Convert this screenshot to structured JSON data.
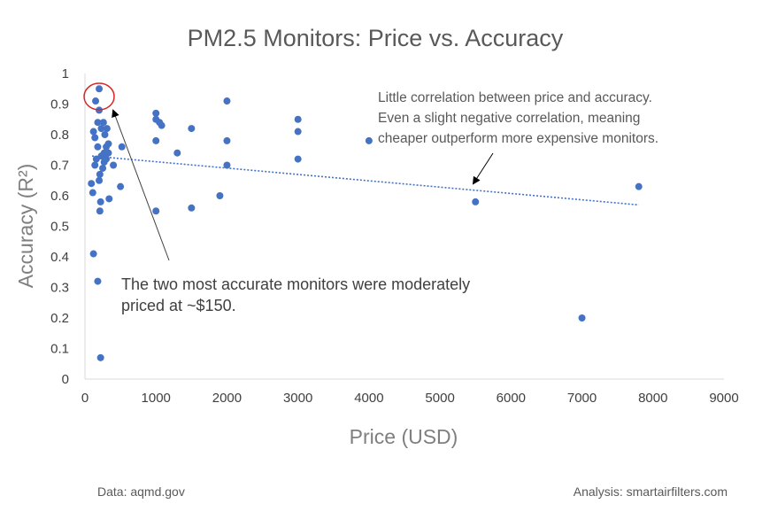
{
  "chart_data": {
    "type": "scatter",
    "title": "PM2.5 Monitors: Price vs. Accuracy",
    "xlabel": "Price (USD)",
    "ylabel": "Accuracy (R²)",
    "xlim": [
      0,
      9000
    ],
    "ylim": [
      0,
      1
    ],
    "x_ticks": [
      "0",
      "1000",
      "2000",
      "3000",
      "4000",
      "5000",
      "6000",
      "7000",
      "8000",
      "9000"
    ],
    "y_ticks": [
      "0",
      "0.1",
      "0.2",
      "0.3",
      "0.4",
      "0.5",
      "0.6",
      "0.7",
      "0.8",
      "0.9",
      "1"
    ],
    "grid": false,
    "series": [
      {
        "points": [
          [
            200,
            0.95
          ],
          [
            150,
            0.91
          ],
          [
            180,
            0.84
          ],
          [
            200,
            0.88
          ],
          [
            120,
            0.81
          ],
          [
            140,
            0.79
          ],
          [
            230,
            0.82
          ],
          [
            260,
            0.84
          ],
          [
            280,
            0.8
          ],
          [
            310,
            0.82
          ],
          [
            330,
            0.77
          ],
          [
            180,
            0.76
          ],
          [
            160,
            0.72
          ],
          [
            230,
            0.73
          ],
          [
            270,
            0.74
          ],
          [
            300,
            0.72
          ],
          [
            250,
            0.69
          ],
          [
            210,
            0.67
          ],
          [
            200,
            0.65
          ],
          [
            140,
            0.7
          ],
          [
            330,
            0.74
          ],
          [
            400,
            0.7
          ],
          [
            520,
            0.76
          ],
          [
            90,
            0.64
          ],
          [
            110,
            0.61
          ],
          [
            220,
            0.58
          ],
          [
            340,
            0.59
          ],
          [
            210,
            0.55
          ],
          [
            500,
            0.63
          ],
          [
            120,
            0.41
          ],
          [
            180,
            0.32
          ],
          [
            220,
            0.07
          ],
          [
            270,
            0.71
          ],
          [
            300,
            0.76
          ],
          [
            1000,
            0.87
          ],
          [
            1000,
            0.85
          ],
          [
            1050,
            0.84
          ],
          [
            1080,
            0.83
          ],
          [
            1000,
            0.78
          ],
          [
            1000,
            0.55
          ],
          [
            1300,
            0.74
          ],
          [
            1500,
            0.82
          ],
          [
            1500,
            0.56
          ],
          [
            2000,
            0.91
          ],
          [
            2000,
            0.78
          ],
          [
            2000,
            0.7
          ],
          [
            1900,
            0.6
          ],
          [
            3000,
            0.85
          ],
          [
            3000,
            0.81
          ],
          [
            3000,
            0.72
          ],
          [
            4000,
            0.78
          ],
          [
            5500,
            0.58
          ],
          [
            7000,
            0.2
          ],
          [
            7800,
            0.63
          ]
        ]
      }
    ],
    "trendline": {
      "x": [
        100,
        7800
      ],
      "y": [
        0.73,
        0.57
      ]
    },
    "annotations": {
      "top_note": [
        "Little correlation between price and accuracy.",
        "Even a slight negative correlation, meaning",
        "cheaper outperform more expensive monitors."
      ],
      "bottom_note": [
        "The two most accurate monitors were moderately",
        "priced at ~$150."
      ]
    },
    "source": "Data: aqmd.gov",
    "analysis": "Analysis: smartairfilters.com",
    "colors": {
      "point": "#4472c4",
      "trend": "#4472c4",
      "highlight": "#d62728",
      "axis": "#d9d9d9"
    }
  }
}
